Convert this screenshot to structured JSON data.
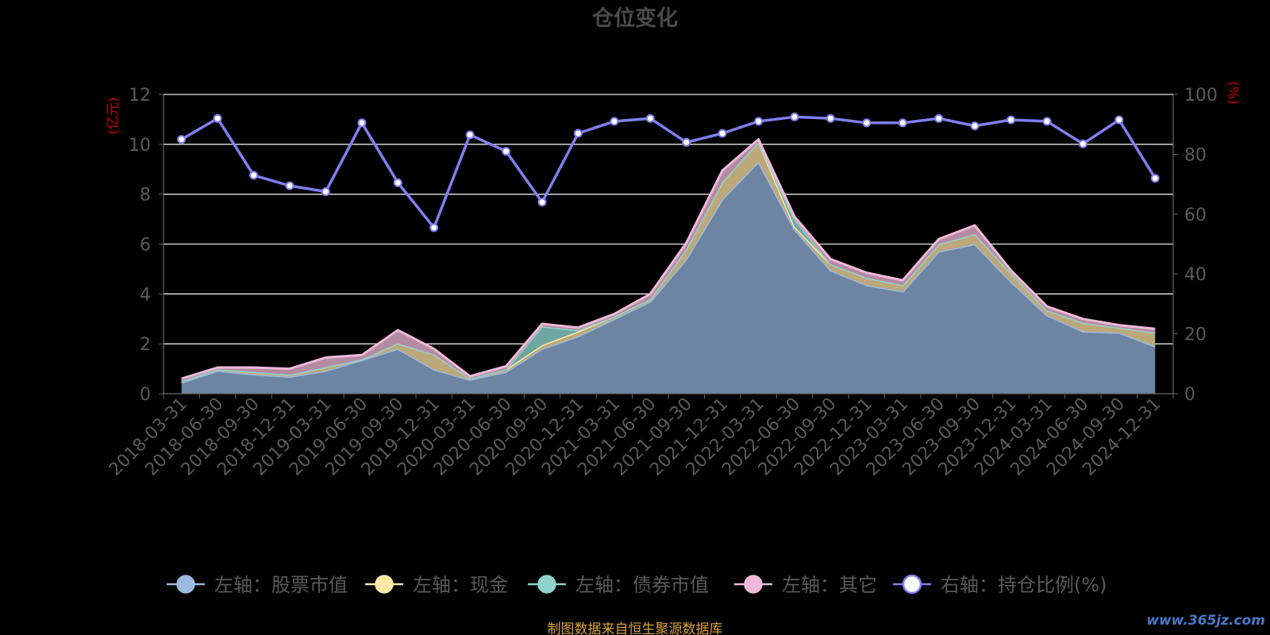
{
  "chart_data": {
    "type": "area",
    "title": "仓位变化",
    "left_axis_label": "(亿元)",
    "right_axis_label": "(%)",
    "left_ylim": [
      0,
      12
    ],
    "left_yticks": [
      0,
      2,
      4,
      6,
      8,
      10,
      12
    ],
    "right_ylim": [
      0,
      100
    ],
    "right_yticks": [
      0,
      20,
      40,
      60,
      80,
      100
    ],
    "grid": true,
    "legend_position": "bottom",
    "categories": [
      "2018-03-31",
      "2018-06-30",
      "2018-09-30",
      "2018-12-31",
      "2019-03-31",
      "2019-06-30",
      "2019-09-30",
      "2019-12-31",
      "2020-03-31",
      "2020-06-30",
      "2020-09-30",
      "2020-12-31",
      "2021-03-31",
      "2021-06-30",
      "2021-09-30",
      "2021-12-31",
      "2022-03-31",
      "2022-06-30",
      "2022-09-30",
      "2022-12-31",
      "2023-03-31",
      "2023-06-30",
      "2023-09-30",
      "2023-12-31",
      "2024-03-31",
      "2024-06-30",
      "2024-09-30",
      "2024-12-31"
    ],
    "series": [
      {
        "name": "左轴：股票市值",
        "axis": "left",
        "color": "#9cb9e0",
        "values": [
          0.45,
          0.92,
          0.78,
          0.68,
          0.92,
          1.35,
          1.8,
          0.98,
          0.56,
          0.88,
          1.8,
          2.3,
          3.0,
          3.7,
          5.4,
          7.8,
          9.3,
          6.6,
          4.95,
          4.35,
          4.1,
          5.7,
          6.0,
          4.5,
          3.15,
          2.5,
          2.45,
          1.9
        ]
      },
      {
        "name": "左轴：现金",
        "axis": "left",
        "color": "#fce9a6",
        "values": [
          0.05,
          0.06,
          0.1,
          0.08,
          0.15,
          0.03,
          0.22,
          0.6,
          0.06,
          0.1,
          0.15,
          0.2,
          0.1,
          0.1,
          0.4,
          0.7,
          0.8,
          0.1,
          0.25,
          0.3,
          0.25,
          0.3,
          0.4,
          0.35,
          0.2,
          0.35,
          0.2,
          0.55
        ]
      },
      {
        "name": "左轴：债券市值",
        "axis": "left",
        "color": "#8fd2cb",
        "values": [
          0.0,
          0.0,
          0.0,
          0.0,
          0.0,
          0.0,
          0.0,
          0.0,
          0.0,
          0.0,
          0.75,
          0.05,
          0.0,
          0.0,
          0.0,
          0.0,
          0.0,
          0.3,
          0.0,
          0.0,
          0.0,
          0.0,
          0.0,
          0.0,
          0.0,
          0.0,
          0.0,
          0.0
        ]
      },
      {
        "name": "左轴：其它",
        "axis": "left",
        "color": "#f0b8d8",
        "values": [
          0.1,
          0.07,
          0.17,
          0.24,
          0.38,
          0.17,
          0.53,
          0.22,
          0.08,
          0.12,
          0.1,
          0.1,
          0.1,
          0.2,
          0.25,
          0.45,
          0.1,
          0.1,
          0.2,
          0.2,
          0.2,
          0.2,
          0.35,
          0.1,
          0.15,
          0.15,
          0.1,
          0.15
        ]
      },
      {
        "name": "右轴：持仓比例(%)",
        "axis": "right",
        "color": "#7f7ff0",
        "values": [
          85,
          92,
          73,
          69.5,
          67.5,
          90.5,
          70.5,
          55.5,
          86.5,
          81,
          64,
          87,
          91,
          92,
          84,
          87,
          91,
          92.5,
          92,
          90.5,
          90.5,
          92,
          89.5,
          91.5,
          91,
          83.5,
          91.5,
          72
        ]
      }
    ]
  },
  "footer": {
    "source_note": "制图数据来自恒生聚源数据库",
    "watermark": "www.365jz.com"
  }
}
